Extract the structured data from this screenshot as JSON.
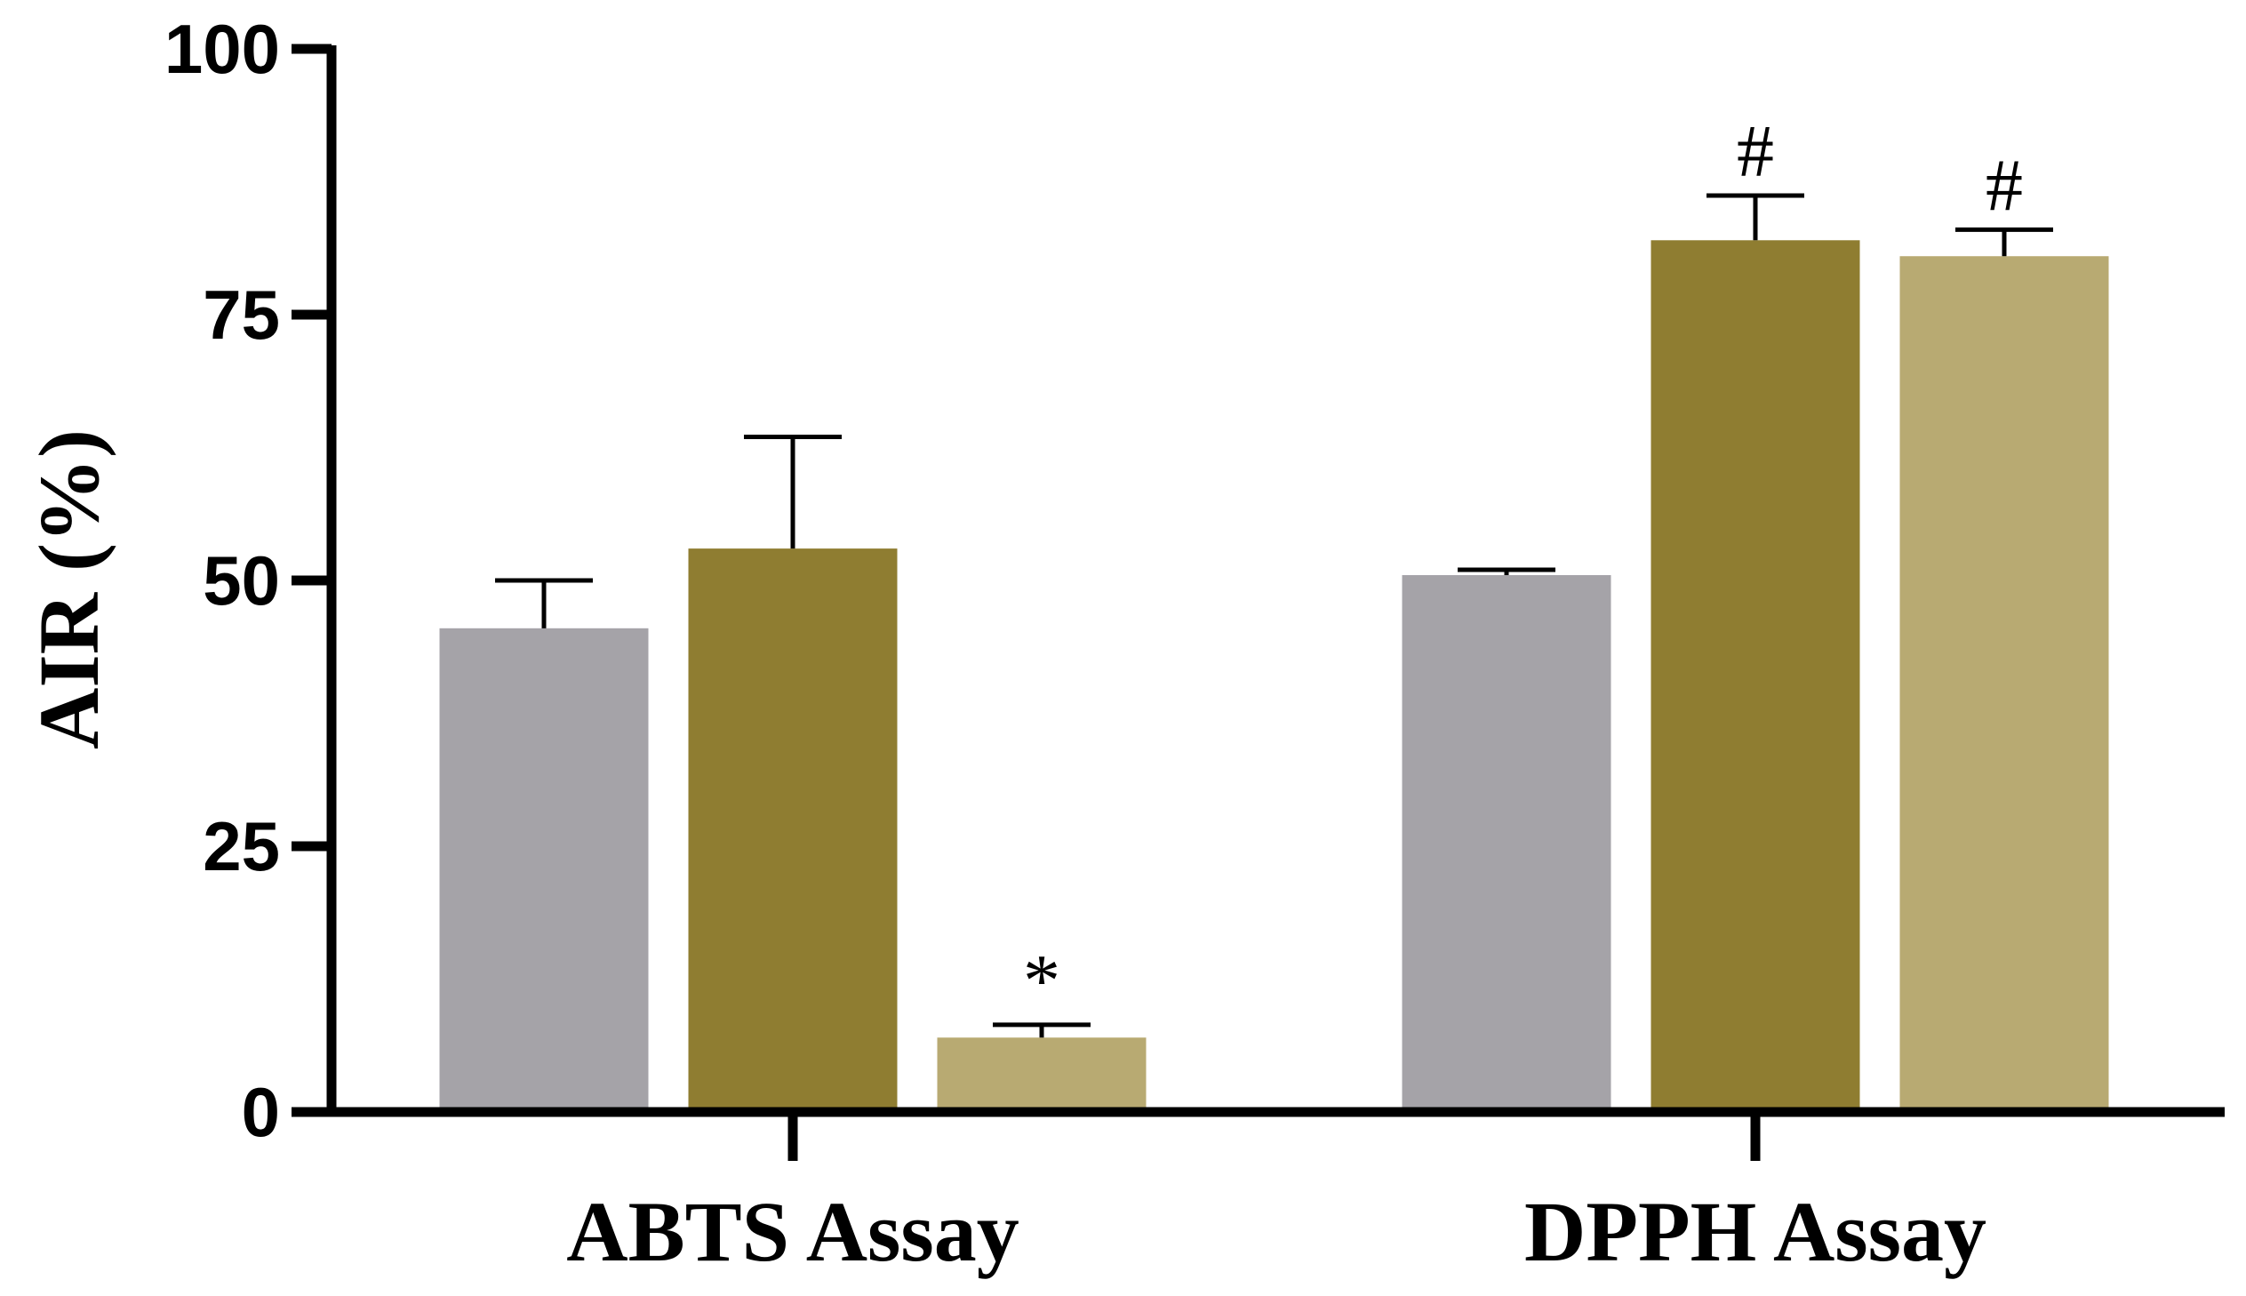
{
  "chart_data": {
    "type": "bar",
    "title": "",
    "xlabel": "",
    "ylabel": "AIR (%)",
    "ylim": [
      0,
      100
    ],
    "yticks": [
      0,
      25,
      50,
      75,
      100
    ],
    "grid": false,
    "legend": "none",
    "categories": [
      "ABTS Assay",
      "DPPH Assay"
    ],
    "series": [
      {
        "color": "#a5a3a8",
        "values": [
          45.5,
          50.5
        ],
        "errors": [
          4.5,
          0.5
        ],
        "annotations": [
          "",
          ""
        ]
      },
      {
        "color": "#8f7d31",
        "values": [
          53.0,
          82.0
        ],
        "errors": [
          10.5,
          4.2
        ],
        "annotations": [
          "",
          "#"
        ]
      },
      {
        "color": "#b8aa72",
        "values": [
          7.0,
          80.5
        ],
        "errors": [
          1.2,
          2.5
        ],
        "annotations": [
          "*",
          "#"
        ]
      }
    ]
  }
}
